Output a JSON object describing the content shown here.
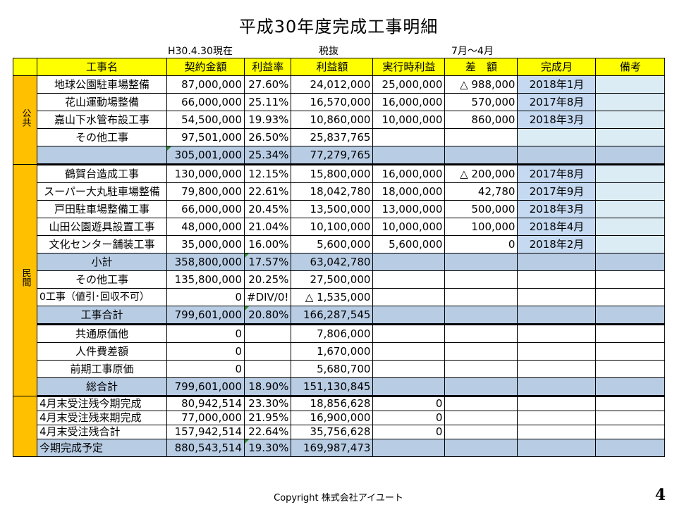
{
  "title": "平成30年度完成工事明細",
  "meta": {
    "date": "H30.4.30現在",
    "tax": "税抜",
    "period": "7月～4月"
  },
  "headers": [
    "工事名",
    "契約金額",
    "利益率",
    "利益額",
    "実行時利益",
    "差　額",
    "完成月",
    "備考"
  ],
  "public": {
    "label": "公共",
    "rows": [
      {
        "name": "地球公園駐車場整備",
        "contract": "87,000,000",
        "rate": "27.60%",
        "profit": "24,012,000",
        "exec": "25,000,000",
        "diff": "△ 988,000",
        "month": "2018年1月",
        "note": ""
      },
      {
        "name": "花山運動場整備",
        "contract": "66,000,000",
        "rate": "25.11%",
        "profit": "16,570,000",
        "exec": "16,000,000",
        "diff": "570,000",
        "month": "2017年8月",
        "note": ""
      },
      {
        "name": "嘉山下水管布設工事",
        "contract": "54,500,000",
        "rate": "19.93%",
        "profit": "10,860,000",
        "exec": "10,000,000",
        "diff": "860,000",
        "month": "2018年3月",
        "note": ""
      },
      {
        "name": "その他工事",
        "contract": "97,501,000",
        "rate": "26.50%",
        "profit": "25,837,765",
        "exec": "",
        "diff": "",
        "month": "",
        "note": ""
      }
    ],
    "total": {
      "name": "",
      "contract": "305,001,000",
      "rate": "25.34%",
      "profit": "77,279,765"
    }
  },
  "private": {
    "label": "民間",
    "rows": [
      {
        "name": "鶴賀台造成工事",
        "contract": "130,000,000",
        "rate": "12.15%",
        "profit": "15,800,000",
        "exec": "16,000,000",
        "diff": "△ 200,000",
        "month": "2017年8月",
        "note": ""
      },
      {
        "name": "スーパー大丸駐車場整備",
        "contract": "79,800,000",
        "rate": "22.61%",
        "profit": "18,042,780",
        "exec": "18,000,000",
        "diff": "42,780",
        "month": "2017年9月",
        "note": ""
      },
      {
        "name": "戸田駐車場整備工事",
        "contract": "66,000,000",
        "rate": "20.45%",
        "profit": "13,500,000",
        "exec": "13,000,000",
        "diff": "500,000",
        "month": "2018年3月",
        "note": ""
      },
      {
        "name": "山田公園遊具設置工事",
        "contract": "48,000,000",
        "rate": "21.04%",
        "profit": "10,100,000",
        "exec": "10,000,000",
        "diff": "100,000",
        "month": "2018年4月",
        "note": ""
      },
      {
        "name": "文化センター舗装工事",
        "contract": "35,000,000",
        "rate": "16.00%",
        "profit": "5,600,000",
        "exec": "5,600,000",
        "diff": "0",
        "month": "2018年2月",
        "note": ""
      }
    ],
    "subtotal": {
      "name": "小計",
      "contract": "358,800,000",
      "rate": "17.57%",
      "profit": "63,042,780"
    },
    "other": {
      "name": "その他工事",
      "contract": "135,800,000",
      "rate": "20.25%",
      "profit": "27,500,000"
    },
    "zero": {
      "name": "0工事（値引･回収不可）",
      "contract": "0",
      "rate": "#DIV/0!",
      "profit": "△ 1,535,000"
    },
    "worktotal": {
      "name": "工事合計",
      "contract": "799,601,000",
      "rate": "20.80%",
      "profit": "166,287,545"
    },
    "common": {
      "name": "共通原価他",
      "contract": "0",
      "profit": "7,806,000"
    },
    "labor": {
      "name": "人件費差額",
      "contract": "0",
      "profit": "1,670,000"
    },
    "prior": {
      "name": "前期工事原価",
      "contract": "0",
      "profit": "5,680,700"
    }
  },
  "grand": {
    "name": "総合計",
    "contract": "799,601,000",
    "rate": "18.90%",
    "profit": "151,130,845"
  },
  "backlog": [
    {
      "name": "4月末受注残今期完成",
      "contract": "80,942,514",
      "rate": "23.30%",
      "profit": "18,856,628",
      "exec": "0"
    },
    {
      "name": "4月末受注残来期完成",
      "contract": "77,000,000",
      "rate": "21.95%",
      "profit": "16,900,000",
      "exec": "0"
    },
    {
      "name": "4月末受注残合計",
      "contract": "157,942,514",
      "rate": "22.64%",
      "profit": "35,756,628",
      "exec": "0"
    }
  ],
  "forecast": {
    "name": "今期完成予定",
    "contract": "880,543,514",
    "rate": "19.30%",
    "profit": "169,987,473"
  },
  "footer": "Copyright  株式会社アイユート",
  "page": "4"
}
